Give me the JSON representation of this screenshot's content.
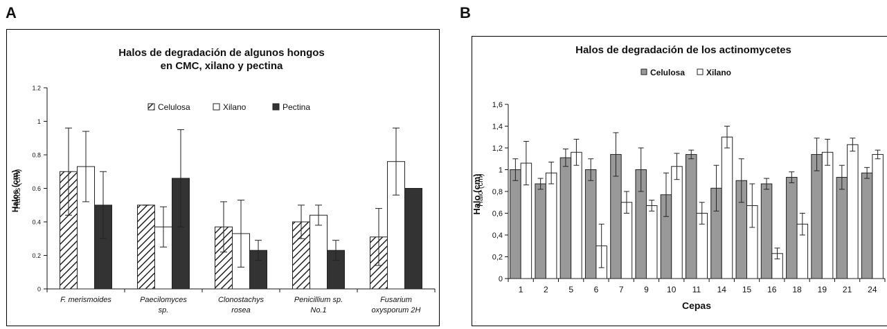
{
  "panels": {
    "a_letter": "A",
    "b_letter": "B"
  },
  "chart_data": [
    {
      "type": "bar",
      "title_line1": "Halos de degradación de algunos hongos",
      "title_line2": "en CMC, xilano y pectina",
      "ylabel": "Halos (cm)",
      "ylabel_overlap": "Halos (cm)",
      "xlabel": "",
      "ylim": [
        0,
        1.2
      ],
      "yticks": [
        "0",
        "0.2",
        "0.4",
        "0.6",
        "0.8",
        "1",
        "1.2"
      ],
      "ytick_values": [
        0,
        0.2,
        0.4,
        0.6,
        0.8,
        1,
        1.2
      ],
      "grid": false,
      "legend_position": "top-center",
      "categories": [
        [
          "F. merismoides"
        ],
        [
          "Paecilomyces",
          "sp."
        ],
        [
          "Clonostachys",
          "rosea"
        ],
        [
          "Penicillium sp.",
          "No.1"
        ],
        [
          "Fusarium",
          "oxysporum 2H"
        ]
      ],
      "series": [
        {
          "name": "Celulosa",
          "fill": "hatch",
          "values": [
            0.7,
            0.5,
            0.37,
            0.4,
            0.31
          ],
          "errors": [
            0.26,
            0.0,
            0.15,
            0.1,
            0.17
          ]
        },
        {
          "name": "Xilano",
          "fill": "#ffffff",
          "values": [
            0.73,
            0.37,
            0.33,
            0.44,
            0.76
          ],
          "errors": [
            0.21,
            0.12,
            0.2,
            0.06,
            0.2
          ]
        },
        {
          "name": "Pectina",
          "fill": "#333333",
          "values": [
            0.5,
            0.66,
            0.23,
            0.23,
            0.6
          ],
          "errors": [
            0.2,
            0.29,
            0.06,
            0.06,
            0.0
          ]
        }
      ]
    },
    {
      "type": "bar",
      "title": "Halos de degradación de los actinomycetes",
      "ylabel": "Halo (cm)",
      "ylabel_overlap": "Halo (cm)",
      "xlabel": "Cepas",
      "ylim": [
        0,
        1.6
      ],
      "yticks": [
        "0",
        "0,2",
        "0,4",
        "0,6",
        "0,8",
        "1",
        "1,2",
        "1,4",
        "1,6"
      ],
      "ytick_values": [
        0,
        0.2,
        0.4,
        0.6,
        0.8,
        1,
        1.2,
        1.4,
        1.6
      ],
      "grid": false,
      "legend_position": "top-center",
      "categories": [
        "1",
        "2",
        "5",
        "6",
        "7",
        "9",
        "10",
        "11",
        "14",
        "15",
        "16",
        "18",
        "19",
        "21",
        "24"
      ],
      "series": [
        {
          "name": "Celulosa",
          "fill": "#999999",
          "values": [
            1.0,
            0.87,
            1.11,
            1.0,
            1.14,
            1.0,
            0.77,
            1.14,
            0.83,
            0.9,
            0.87,
            0.93,
            1.14,
            0.93,
            0.97
          ],
          "errors": [
            0.1,
            0.05,
            0.08,
            0.1,
            0.2,
            0.2,
            0.2,
            0.04,
            0.21,
            0.2,
            0.05,
            0.05,
            0.15,
            0.11,
            0.05
          ]
        },
        {
          "name": "Xilano",
          "fill": "#ffffff",
          "values": [
            1.06,
            0.97,
            1.16,
            0.3,
            0.7,
            0.67,
            1.03,
            0.6,
            1.3,
            0.67,
            0.23,
            0.5,
            1.16,
            1.23,
            1.14
          ],
          "errors": [
            0.2,
            0.1,
            0.12,
            0.2,
            0.1,
            0.05,
            0.12,
            0.1,
            0.1,
            0.2,
            0.05,
            0.1,
            0.12,
            0.06,
            0.04
          ]
        }
      ]
    }
  ]
}
